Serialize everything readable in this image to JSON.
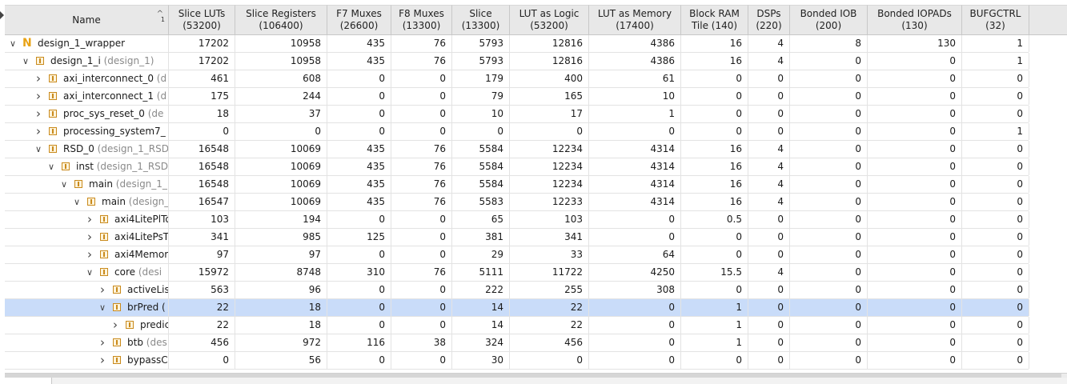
{
  "columns": {
    "name": "Name",
    "sort_indicator": "^",
    "sort_order": "1",
    "c0": [
      "Slice LUTs",
      "(53200)"
    ],
    "c1": [
      "Slice Registers",
      "(106400)"
    ],
    "c2": [
      "F7 Muxes",
      "(26600)"
    ],
    "c3": [
      "F8 Muxes",
      "(13300)"
    ],
    "c4": [
      "Slice",
      "(13300)"
    ],
    "c5": [
      "LUT as Logic",
      "(53200)"
    ],
    "c6": [
      "LUT as Memory",
      "(17400)"
    ],
    "c7": [
      "Block RAM",
      "Tile (140)"
    ],
    "c8": [
      "DSPs",
      "(220)"
    ],
    "c9": [
      "Bonded IOB",
      "(200)"
    ],
    "c10": [
      "Bonded IOPADs",
      "(130)"
    ],
    "c11": [
      "BUFGCTRL",
      "(32)"
    ]
  },
  "rows": [
    {
      "label": "design_1_wrapper",
      "suffix": "",
      "level": 0,
      "expanded": true,
      "icon": "n-icon",
      "vals": [
        "17202",
        "10958",
        "435",
        "76",
        "5793",
        "12816",
        "4386",
        "16",
        "4",
        "8",
        "130",
        "1"
      ]
    },
    {
      "label": "design_1_i ",
      "suffix": "(design_1)",
      "level": 1,
      "expanded": true,
      "icon": "module-icon",
      "vals": [
        "17202",
        "10958",
        "435",
        "76",
        "5793",
        "12816",
        "4386",
        "16",
        "4",
        "0",
        "0",
        "1"
      ]
    },
    {
      "label": "axi_interconnect_0 ",
      "suffix": "(d",
      "level": 2,
      "expanded": false,
      "icon": "module-icon",
      "vals": [
        "461",
        "608",
        "0",
        "0",
        "179",
        "400",
        "61",
        "0",
        "0",
        "0",
        "0",
        "0"
      ]
    },
    {
      "label": "axi_interconnect_1 ",
      "suffix": "(d",
      "level": 2,
      "expanded": false,
      "icon": "module-icon",
      "vals": [
        "175",
        "244",
        "0",
        "0",
        "79",
        "165",
        "10",
        "0",
        "0",
        "0",
        "0",
        "0"
      ]
    },
    {
      "label": "proc_sys_reset_0 ",
      "suffix": "(de",
      "level": 2,
      "expanded": false,
      "icon": "module-icon",
      "vals": [
        "18",
        "37",
        "0",
        "0",
        "10",
        "17",
        "1",
        "0",
        "0",
        "0",
        "0",
        "0"
      ]
    },
    {
      "label": "processing_system7_",
      "suffix": "",
      "level": 2,
      "expanded": false,
      "icon": "module-icon",
      "vals": [
        "0",
        "0",
        "0",
        "0",
        "0",
        "0",
        "0",
        "0",
        "0",
        "0",
        "0",
        "1"
      ]
    },
    {
      "label": "RSD_0 ",
      "suffix": "(design_1_RSD",
      "level": 2,
      "expanded": true,
      "icon": "module-icon",
      "vals": [
        "16548",
        "10069",
        "435",
        "76",
        "5584",
        "12234",
        "4314",
        "16",
        "4",
        "0",
        "0",
        "0"
      ]
    },
    {
      "label": "inst ",
      "suffix": "(design_1_RSD",
      "level": 3,
      "expanded": true,
      "icon": "module-icon",
      "vals": [
        "16548",
        "10069",
        "435",
        "76",
        "5584",
        "12234",
        "4314",
        "16",
        "4",
        "0",
        "0",
        "0"
      ]
    },
    {
      "label": "main ",
      "suffix": "(design_1_",
      "level": 4,
      "expanded": true,
      "icon": "module-icon",
      "vals": [
        "16548",
        "10069",
        "435",
        "76",
        "5584",
        "12234",
        "4314",
        "16",
        "4",
        "0",
        "0",
        "0"
      ]
    },
    {
      "label": "main ",
      "suffix": "(design_",
      "level": 5,
      "expanded": true,
      "icon": "module-icon",
      "vals": [
        "16547",
        "10069",
        "435",
        "76",
        "5583",
        "12233",
        "4314",
        "16",
        "4",
        "0",
        "0",
        "0"
      ]
    },
    {
      "label": "axi4LitePlTo",
      "suffix": "",
      "level": 6,
      "expanded": false,
      "icon": "module-icon",
      "vals": [
        "103",
        "194",
        "0",
        "0",
        "65",
        "103",
        "0",
        "0.5",
        "0",
        "0",
        "0",
        "0"
      ]
    },
    {
      "label": "axi4LitePsT",
      "suffix": "",
      "level": 6,
      "expanded": false,
      "icon": "module-icon",
      "vals": [
        "341",
        "985",
        "125",
        "0",
        "381",
        "341",
        "0",
        "0",
        "0",
        "0",
        "0",
        "0"
      ]
    },
    {
      "label": "axi4Memor",
      "suffix": "",
      "level": 6,
      "expanded": false,
      "icon": "module-icon",
      "vals": [
        "97",
        "97",
        "0",
        "0",
        "29",
        "33",
        "64",
        "0",
        "0",
        "0",
        "0",
        "0"
      ]
    },
    {
      "label": "core ",
      "suffix": "(desi",
      "level": 6,
      "expanded": true,
      "icon": "module-icon",
      "vals": [
        "15972",
        "8748",
        "310",
        "76",
        "5111",
        "11722",
        "4250",
        "15.5",
        "4",
        "0",
        "0",
        "0"
      ]
    },
    {
      "label": "activeLis",
      "suffix": "",
      "level": 7,
      "expanded": false,
      "icon": "module-icon",
      "vals": [
        "563",
        "96",
        "0",
        "0",
        "222",
        "255",
        "308",
        "0",
        "0",
        "0",
        "0",
        "0"
      ]
    },
    {
      "label": "brPred (",
      "suffix": "",
      "level": 7,
      "expanded": true,
      "icon": "module-icon",
      "selected": true,
      "vals": [
        "22",
        "18",
        "0",
        "0",
        "14",
        "22",
        "0",
        "1",
        "0",
        "0",
        "0",
        "0"
      ]
    },
    {
      "label": "predic",
      "suffix": "",
      "level": 8,
      "expanded": false,
      "icon": "module-icon",
      "vals": [
        "22",
        "18",
        "0",
        "0",
        "14",
        "22",
        "0",
        "1",
        "0",
        "0",
        "0",
        "0"
      ]
    },
    {
      "label": "btb ",
      "suffix": "(des",
      "level": 7,
      "expanded": false,
      "icon": "module-icon",
      "vals": [
        "456",
        "972",
        "116",
        "38",
        "324",
        "456",
        "0",
        "1",
        "0",
        "0",
        "0",
        "0"
      ]
    },
    {
      "label": "bypassC",
      "suffix": "",
      "level": 7,
      "expanded": false,
      "icon": "module-icon",
      "vals": [
        "0",
        "56",
        "0",
        "0",
        "30",
        "0",
        "0",
        "0",
        "0",
        "0",
        "0",
        "0"
      ]
    }
  ],
  "colors": {
    "selection": "#c9dcf9",
    "header": "#e8e8e8",
    "icon": "#c98a1c",
    "top_icon": "#e8a214"
  }
}
